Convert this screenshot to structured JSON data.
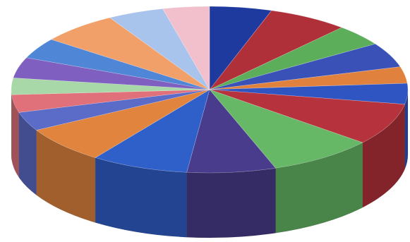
{
  "chart_data": {
    "type": "pie",
    "style": "3d",
    "title": "",
    "legend": "none",
    "slices": [
      {
        "value": 4.4,
        "color": "#1f3a9e"
      },
      {
        "value": 5.7,
        "color": "#b0303a"
      },
      {
        "value": 3.6,
        "color": "#5cae5a"
      },
      {
        "value": 4.2,
        "color": "#3a52b8"
      },
      {
        "value": 2.8,
        "color": "#e0823e"
      },
      {
        "value": 3.5,
        "color": "#2f55c2"
      },
      {
        "value": 7.1,
        "color": "#b6323c"
      },
      {
        "value": 7.5,
        "color": "#66b766"
      },
      {
        "value": 6.3,
        "color": "#4a3c8c"
      },
      {
        "value": 6.9,
        "color": "#2f5fc9"
      },
      {
        "value": 6.2,
        "color": "#e0843e"
      },
      {
        "value": 3.2,
        "color": "#5b6bc8"
      },
      {
        "value": 3.0,
        "color": "#e0707a"
      },
      {
        "value": 2.8,
        "color": "#a8d8a8"
      },
      {
        "value": 3.5,
        "color": "#7f5fc0"
      },
      {
        "value": 3.5,
        "color": "#4f86d6"
      },
      {
        "value": 5.5,
        "color": "#f2a06a"
      },
      {
        "value": 4.0,
        "color": "#a9c4ec"
      },
      {
        "value": 3.3,
        "color": "#f2c0cc"
      }
    ]
  }
}
